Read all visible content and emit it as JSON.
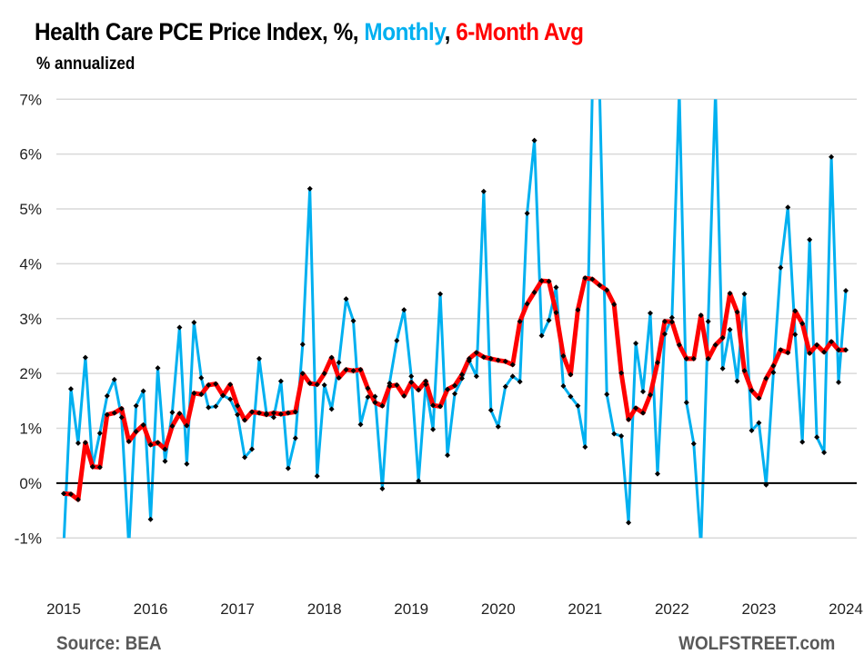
{
  "chart_data": {
    "type": "line",
    "title": {
      "prefix": "Health Care PCE Price Index, %, ",
      "monthly": "Monthly",
      "sep": ", ",
      "avg": "6-Month Avg"
    },
    "subtitle": "% annualized",
    "xlabel": "",
    "ylabel": "",
    "ylim": [
      -1,
      7
    ],
    "yticks": [
      "-1%",
      "0%",
      "1%",
      "2%",
      "3%",
      "4%",
      "5%",
      "6%",
      "7%"
    ],
    "ytick_values": [
      -1,
      0,
      1,
      2,
      3,
      4,
      5,
      6,
      7
    ],
    "xticks": [
      "2015",
      "2016",
      "2017",
      "2018",
      "2019",
      "2020",
      "2021",
      "2022",
      "2023",
      "2024"
    ],
    "x_start": "2015-01",
    "x_end": "2024-01",
    "grid": true,
    "colors": {
      "monthly": "#00B0F0",
      "avg": "#FF0000",
      "marker": "#000000",
      "grid": "#D9D9D9",
      "zero": "#000000"
    },
    "series": [
      {
        "name": "Monthly",
        "values": [
          -1.5,
          1.72,
          0.73,
          2.29,
          0.3,
          0.91,
          1.59,
          1.89,
          1.2,
          -1.5,
          1.41,
          1.68,
          -0.66,
          2.1,
          0.4,
          1.29,
          2.84,
          0.35,
          2.93,
          1.92,
          1.38,
          1.4,
          1.6,
          1.53,
          1.25,
          0.47,
          0.62,
          2.27,
          1.27,
          1.2,
          1.86,
          0.27,
          0.82,
          2.53,
          5.37,
          0.13,
          1.79,
          1.35,
          2.2,
          3.36,
          2.96,
          1.07,
          1.57,
          1.58,
          -0.1,
          1.82,
          2.6,
          3.16,
          1.95,
          0.04,
          1.8,
          0.98,
          3.45,
          0.51,
          1.63,
          1.91,
          2.23,
          1.95,
          5.32,
          1.33,
          1.03,
          1.76,
          1.95,
          1.85,
          4.92,
          6.25,
          2.69,
          2.97,
          3.57,
          1.77,
          1.58,
          1.41,
          0.66,
          7.6,
          7.6,
          1.62,
          0.9,
          0.86,
          -0.72,
          2.55,
          1.67,
          3.1,
          0.17,
          2.72,
          3.02,
          7.6,
          1.47,
          0.72,
          -1.5,
          2.95,
          7.6,
          2.09,
          2.8,
          1.86,
          3.45,
          0.96,
          1.1,
          -0.03,
          2.02,
          3.93,
          5.03,
          2.71,
          0.75,
          4.44,
          0.84,
          0.56,
          5.95,
          1.84,
          3.51
        ]
      },
      {
        "name": "6-Month Avg",
        "values": [
          -0.19,
          -0.2,
          -0.3,
          0.74,
          0.3,
          0.29,
          1.25,
          1.28,
          1.36,
          0.76,
          0.94,
          1.06,
          0.7,
          0.74,
          0.62,
          1.04,
          1.27,
          1.05,
          1.64,
          1.62,
          1.79,
          1.81,
          1.6,
          1.8,
          1.41,
          1.15,
          1.3,
          1.28,
          1.25,
          1.28,
          1.26,
          1.28,
          1.3,
          2.0,
          1.82,
          1.8,
          2.0,
          2.29,
          1.92,
          2.07,
          2.05,
          2.07,
          1.73,
          1.47,
          1.41,
          1.77,
          1.79,
          1.59,
          1.84,
          1.7,
          1.86,
          1.42,
          1.4,
          1.71,
          1.78,
          1.98,
          2.27,
          2.38,
          2.3,
          2.27,
          2.24,
          2.22,
          2.16,
          2.95,
          3.27,
          3.48,
          3.69,
          3.68,
          3.11,
          2.32,
          1.98,
          3.16,
          3.74,
          3.72,
          3.61,
          3.52,
          3.26,
          2.01,
          1.16,
          1.37,
          1.28,
          1.61,
          2.2,
          2.95,
          2.94,
          2.52,
          2.27,
          2.27,
          3.06,
          2.27,
          2.52,
          2.65,
          3.46,
          3.12,
          2.05,
          1.69,
          1.55,
          1.91,
          2.14,
          2.43,
          2.38,
          3.14,
          2.91,
          2.37,
          2.52,
          2.39,
          2.58,
          2.43,
          2.43
        ]
      }
    ]
  },
  "footer": {
    "source": "Source: BEA",
    "brand": "WOLFSTREET.com"
  }
}
